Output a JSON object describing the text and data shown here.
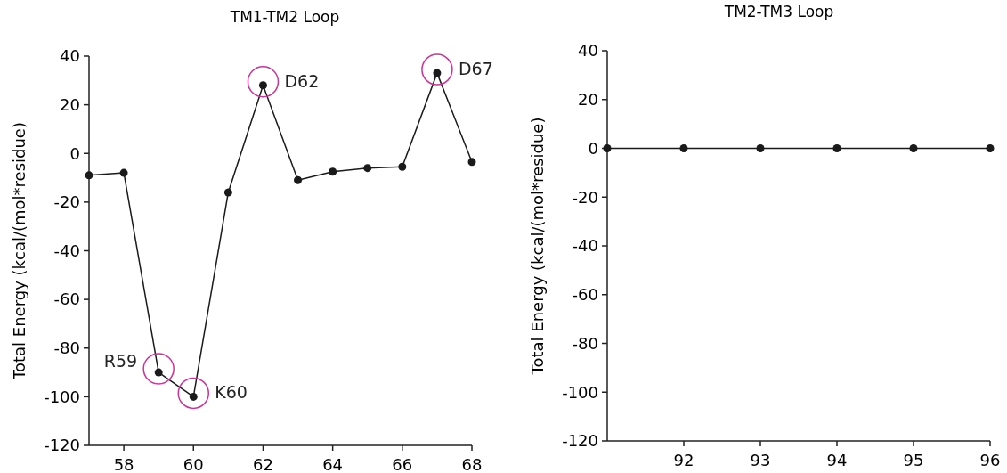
{
  "chart_data": [
    {
      "type": "line",
      "title": "TM1-TM2 Loop",
      "ylabel": "Total Energy (kcal/(mol*residue)",
      "x": [
        57,
        58,
        59,
        60,
        61,
        62,
        63,
        64,
        65,
        66,
        67,
        68
      ],
      "series": [
        {
          "color": "#1a1a1a",
          "values": [
            -9,
            -8,
            -90,
            -100,
            -16,
            28,
            -11,
            -7.5,
            -6,
            -5.5,
            33,
            -3.5
          ]
        }
      ],
      "xlim": [
        57,
        68
      ],
      "xticks": [
        58,
        60,
        62,
        64,
        66,
        68
      ],
      "ylim": [
        -120,
        40
      ],
      "yticks": [
        -120,
        -100,
        -80,
        -60,
        -40,
        -20,
        0,
        20,
        40
      ],
      "marker": "circle",
      "line_style": "solid",
      "annotations": [
        {
          "text": "R59",
          "x": 59,
          "y": -90
        },
        {
          "text": "K60",
          "x": 60,
          "y": -100
        },
        {
          "text": "D62",
          "x": 62,
          "y": 28
        },
        {
          "text": "D67",
          "x": 67,
          "y": 33
        }
      ]
    },
    {
      "type": "line",
      "title": "TM2-TM3 Loop",
      "ylabel": "Total Energy (kcal/(mol*residue)",
      "x": [
        91,
        92,
        93,
        94,
        95,
        96
      ],
      "series": [
        {
          "color": "#1a1a1a",
          "values": [
            0,
            0,
            0,
            0,
            0,
            0
          ]
        }
      ],
      "xlim": [
        91,
        96
      ],
      "xticks": [
        92,
        93,
        94,
        95,
        96
      ],
      "ylim": [
        -120,
        40
      ],
      "yticks": [
        -120,
        -100,
        -80,
        -60,
        -40,
        -20,
        0,
        20,
        40
      ],
      "marker": "circle",
      "line_style": "solid"
    }
  ]
}
